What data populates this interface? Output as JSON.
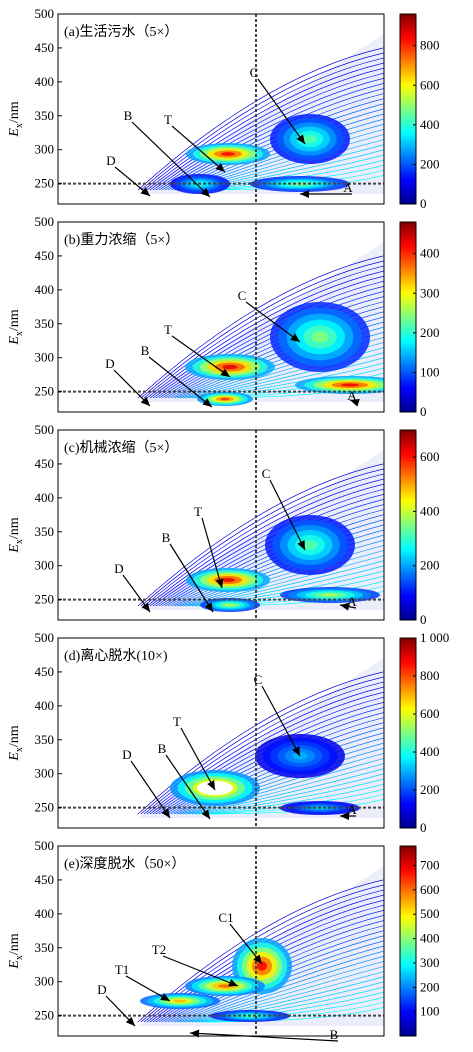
{
  "figure": {
    "y_label_main": "E",
    "y_label_sub": "x",
    "y_label_unit": "/nm"
  },
  "chart_data": [
    {
      "type": "heatmap",
      "title": "(a)生活污水（5×）",
      "ylim": [
        220,
        500
      ],
      "yticks": [
        250,
        300,
        350,
        400,
        450,
        500
      ],
      "colorbar_max": 960,
      "colorbar_ticks": [
        0,
        200,
        400,
        600,
        800
      ],
      "peaks": [
        {
          "label": "T",
          "ex": 280,
          "intensity": 900
        },
        {
          "label": "B",
          "ex": 230,
          "intensity": 520
        },
        {
          "label": "D",
          "ex": 232,
          "intensity": 380
        },
        {
          "label": "C",
          "ex": 315,
          "intensity": 450
        },
        {
          "label": "A",
          "ex": 250,
          "intensity": 560
        }
      ]
    },
    {
      "type": "heatmap",
      "title": "(b)重力浓缩（5×）",
      "ylim": [
        220,
        500
      ],
      "yticks": [
        250,
        300,
        350,
        400,
        450,
        500
      ],
      "colorbar_max": 480,
      "colorbar_ticks": [
        0,
        100,
        200,
        300,
        400
      ],
      "peaks": [
        {
          "label": "T",
          "ex": 288,
          "intensity": 470
        },
        {
          "label": "B",
          "ex": 238,
          "intensity": 440
        },
        {
          "label": "D",
          "ex": 238,
          "intensity": 200
        },
        {
          "label": "C",
          "ex": 310,
          "intensity": 260
        },
        {
          "label": "A",
          "ex": 255,
          "intensity": 460
        }
      ]
    },
    {
      "type": "heatmap",
      "title": "(c)机械浓缩（5×）",
      "ylim": [
        220,
        500
      ],
      "yticks": [
        250,
        300,
        350,
        400,
        450,
        500
      ],
      "colorbar_max": 700,
      "colorbar_ticks": [
        0,
        200,
        400,
        600
      ],
      "peaks": [
        {
          "label": "T",
          "ex": 283,
          "intensity": 680
        },
        {
          "label": "B",
          "ex": 238,
          "intensity": 450
        },
        {
          "label": "D",
          "ex": 240,
          "intensity": 250
        },
        {
          "label": "C",
          "ex": 310,
          "intensity": 360
        },
        {
          "label": "A",
          "ex": 250,
          "intensity": 420
        }
      ]
    },
    {
      "type": "heatmap",
      "title": "(d)离心脱水(10×)",
      "ylim": [
        220,
        500
      ],
      "yticks": [
        250,
        300,
        350,
        400,
        450,
        500
      ],
      "colorbar_max": 1000,
      "colorbar_ticks": [
        0,
        200,
        400,
        600,
        800,
        "1 000"
      ],
      "peaks": [
        {
          "label": "T",
          "ex": 280,
          "intensity": 1000
        },
        {
          "label": "B",
          "ex": 235,
          "intensity": 450
        },
        {
          "label": "D",
          "ex": 235,
          "intensity": 300
        },
        {
          "label": "C",
          "ex": 300,
          "intensity": 330
        },
        {
          "label": "A",
          "ex": 248,
          "intensity": 360
        }
      ]
    },
    {
      "type": "heatmap",
      "title": "(e)深度脱水（50×）",
      "ylim": [
        220,
        500
      ],
      "yticks": [
        250,
        300,
        350,
        400,
        450,
        500
      ],
      "colorbar_max": 780,
      "colorbar_ticks": [
        100,
        200,
        300,
        400,
        500,
        600,
        700
      ],
      "peaks": [
        {
          "label": "C1",
          "ex": 320,
          "intensity": 760
        },
        {
          "label": "T2",
          "ex": 285,
          "intensity": 680
        },
        {
          "label": "T1",
          "ex": 275,
          "intensity": 560
        },
        {
          "label": "D",
          "ex": 240,
          "intensity": 260
        },
        {
          "label": "B",
          "ex": 228,
          "intensity": 420
        }
      ]
    }
  ]
}
